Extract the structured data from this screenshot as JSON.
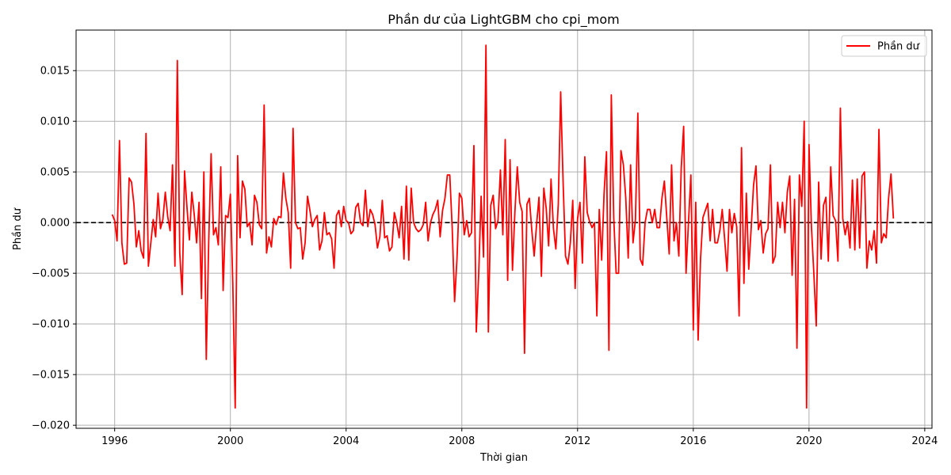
{
  "chart_data": {
    "type": "line",
    "title": "Phần dư của LightGBM cho cpi_mom",
    "xlabel": "Thời gian",
    "ylabel": "Phần dư",
    "x_ticks": [
      "1996",
      "2000",
      "2004",
      "2008",
      "2012",
      "2016",
      "2020",
      "2024"
    ],
    "y_ticks": [
      "0.015",
      "0.010",
      "0.005",
      "0.000",
      "−0.005",
      "−0.010",
      "−0.015",
      "−0.020"
    ],
    "xlim": [
      "1994-09",
      "2024-04"
    ],
    "ylim": [
      -0.0203,
      0.019
    ],
    "grid": true,
    "legend_position": "top-right",
    "reference_line": {
      "y": 0.0,
      "style": "dashed",
      "color": "#000000"
    },
    "series": [
      {
        "name": "Phần dư",
        "color": "#ff0000",
        "x_start": "1995-12",
        "x_step": "1 month",
        "values": [
          0.0008,
          0.0002,
          -0.0018,
          0.0081,
          -0.002,
          -0.0041,
          -0.004,
          0.0044,
          0.004,
          0.0018,
          -0.0024,
          -0.0008,
          -0.0028,
          -0.0035,
          0.0088,
          -0.0043,
          -0.002,
          0.0003,
          -0.0014,
          0.0029,
          -0.0006,
          0.0003,
          0.003,
          0.0006,
          -0.0008,
          0.0057,
          -0.0043,
          0.016,
          -0.003,
          -0.0071,
          0.0051,
          0.0015,
          -0.0017,
          0.003,
          0.0008,
          -0.002,
          0.002,
          -0.0075,
          0.005,
          -0.0135,
          -0.002,
          0.0068,
          -0.0012,
          -0.0005,
          -0.0022,
          0.0055,
          -0.0067,
          0.0007,
          0.0005,
          0.0028,
          -0.006,
          -0.0183,
          0.0066,
          -0.0015,
          0.0041,
          0.0033,
          -0.0004,
          0.0,
          -0.0022,
          0.0027,
          0.002,
          -0.0002,
          -0.0006,
          0.0116,
          -0.003,
          -0.0014,
          -0.0024,
          0.0004,
          -0.0002,
          0.0006,
          0.0005,
          0.0049,
          0.0024,
          0.001,
          -0.0045,
          0.0093,
          0.0,
          -0.0006,
          -0.0005,
          -0.0036,
          -0.002,
          0.0026,
          0.0012,
          -0.0004,
          0.0003,
          0.0007,
          -0.0027,
          -0.0018,
          0.001,
          -0.0012,
          -0.001,
          -0.0016,
          -0.0045,
          0.0007,
          0.0012,
          -0.0004,
          0.0016,
          0.0002,
          0.0,
          -0.0011,
          -0.0008,
          0.0015,
          0.0019,
          0.0,
          -0.0003,
          0.0032,
          -0.0004,
          0.0013,
          0.0008,
          -0.0002,
          -0.0025,
          -0.0014,
          0.0022,
          -0.0015,
          -0.0013,
          -0.0028,
          -0.0024,
          0.001,
          0.0,
          -0.0015,
          0.0016,
          -0.0036,
          0.0036,
          -0.0037,
          0.0034,
          0.0,
          -0.0006,
          -0.0009,
          -0.0007,
          -0.0002,
          0.002,
          -0.0018,
          0.0,
          0.0008,
          0.0013,
          0.0022,
          -0.0014,
          0.0012,
          0.0024,
          0.0047,
          0.0047,
          -0.0005,
          -0.0078,
          -0.0035,
          0.0029,
          0.0024,
          -0.0012,
          0.0002,
          -0.0014,
          -0.001,
          0.0076,
          -0.0108,
          -0.005,
          0.0026,
          -0.0034,
          0.0175,
          -0.0108,
          0.0017,
          0.0027,
          -0.0006,
          0.0002,
          0.0052,
          -0.0012,
          0.0082,
          -0.0057,
          0.0062,
          -0.0047,
          0.001,
          0.0055,
          0.002,
          0.0011,
          -0.0129,
          0.0018,
          0.0024,
          -0.0007,
          -0.0033,
          -0.0002,
          0.0025,
          -0.0053,
          0.0034,
          0.0014,
          -0.0023,
          0.0043,
          -0.0006,
          -0.0026,
          0.0018,
          0.0129,
          0.004,
          -0.0033,
          -0.0041,
          -0.002,
          0.0022,
          -0.0065,
          0.0004,
          0.002,
          -0.004,
          0.0065,
          0.001,
          0.0001,
          -0.0005,
          0.0,
          -0.0092,
          0.0013,
          -0.0037,
          0.0029,
          0.007,
          -0.0126,
          0.0126,
          0.0005,
          -0.005,
          -0.005,
          0.0071,
          0.0057,
          0.0024,
          -0.0035,
          0.0057,
          -0.002,
          0.0003,
          0.0108,
          -0.0036,
          -0.0042,
          0.0,
          0.0013,
          0.0013,
          0.0,
          0.0013,
          -0.0005,
          -0.0005,
          0.0024,
          0.0041,
          0.0005,
          -0.0031,
          0.0057,
          -0.0018,
          0.0,
          -0.0033,
          0.0054,
          0.0095,
          -0.005,
          0.0,
          0.0047,
          -0.0106,
          0.002,
          -0.0116,
          -0.0036,
          0.0005,
          0.0012,
          0.0019,
          -0.0018,
          0.0013,
          -0.002,
          -0.002,
          -0.0008,
          0.0013,
          -0.0016,
          -0.0048,
          0.0013,
          -0.001,
          0.0009,
          -0.0004,
          -0.0092,
          0.0074,
          -0.006,
          0.0029,
          -0.0046,
          -0.0006,
          0.0037,
          0.0056,
          -0.0007,
          0.0002,
          -0.003,
          -0.0011,
          -0.0006,
          0.0057,
          -0.004,
          -0.0033,
          0.002,
          -0.0005,
          0.002,
          -0.001,
          0.003,
          0.0046,
          -0.0052,
          0.0023,
          -0.0124,
          0.0047,
          0.0016,
          0.01,
          -0.0183,
          0.0077,
          -0.0004,
          -0.005,
          -0.0102,
          0.004,
          -0.0036,
          0.0017,
          0.0025,
          -0.0038,
          0.0055,
          0.0007,
          0.0002,
          -0.0038,
          0.0113,
          0.0004,
          -0.0012,
          0.0001,
          -0.0025,
          0.0042,
          -0.0027,
          0.0043,
          -0.0025,
          0.0046,
          0.005,
          -0.0045,
          -0.0018,
          -0.0027,
          -0.0008,
          -0.004,
          0.0092,
          -0.002,
          -0.0011,
          -0.0015,
          0.0024,
          0.0048,
          0.0004
        ]
      }
    ]
  }
}
